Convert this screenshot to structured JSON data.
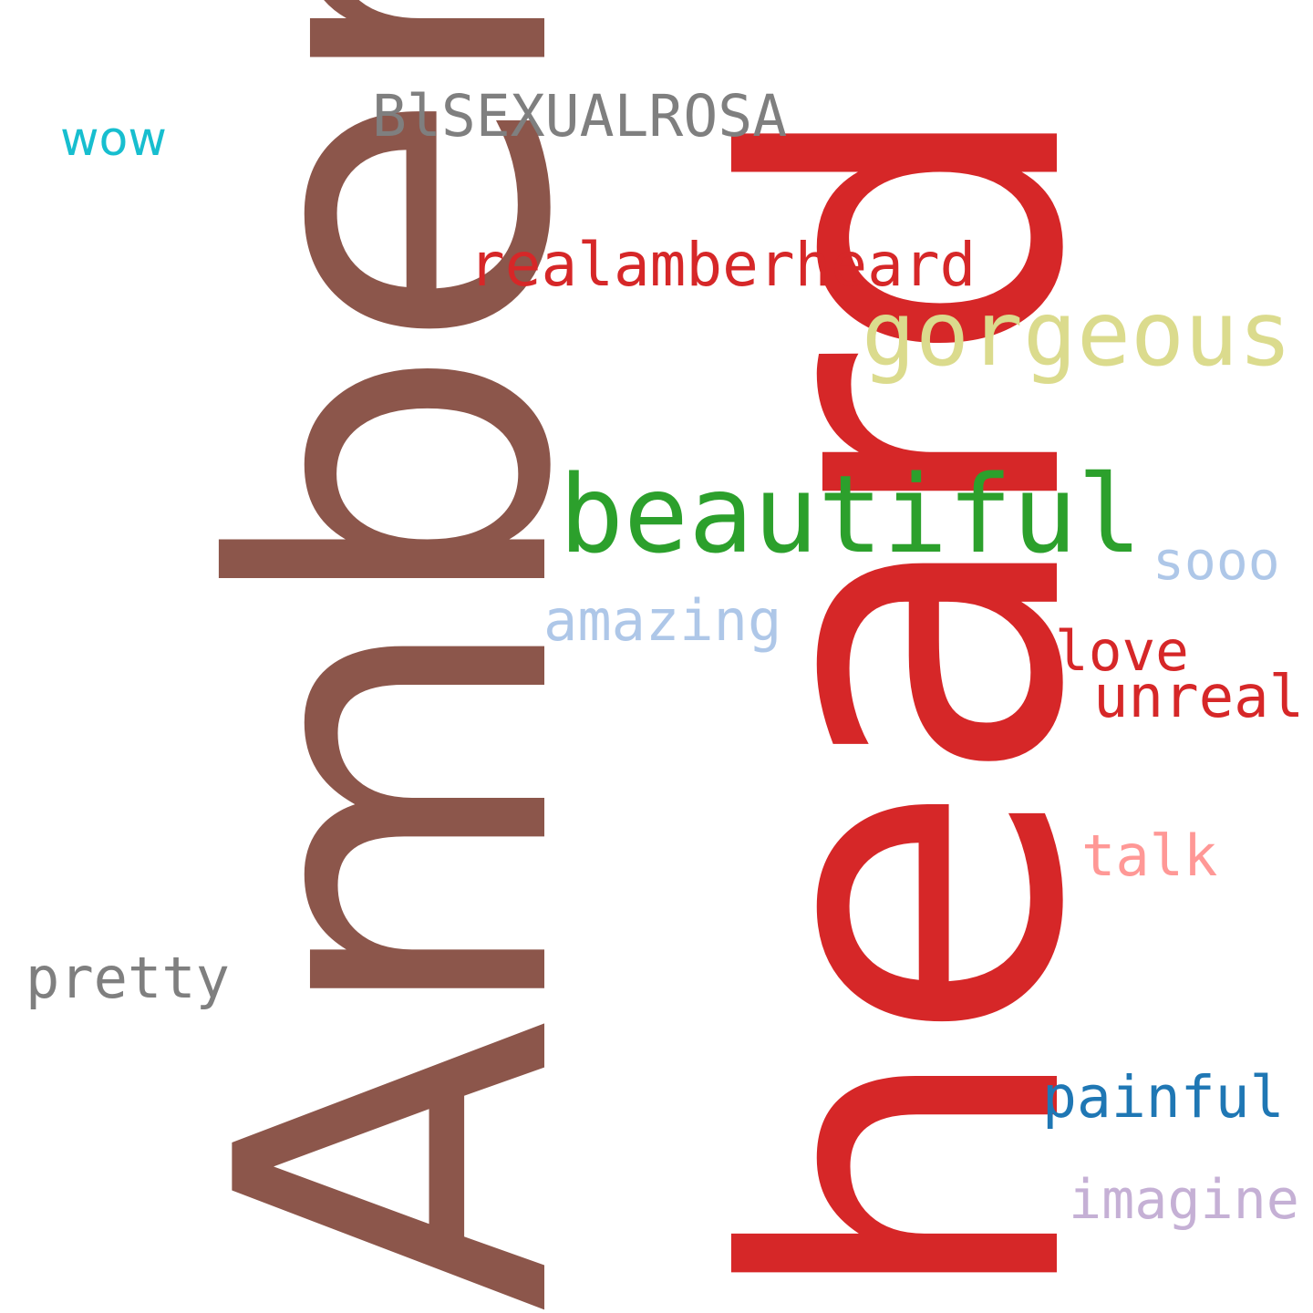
{
  "cloud": {
    "words": {
      "heard": "heard",
      "amber": "Amber",
      "beautiful": "beautiful",
      "gorgeous": "gorgeous",
      "realamberheard": "realamberheard",
      "bisexualrosa": "BlSEXUALROSA",
      "wow": "wow",
      "sooo": "sooo",
      "amazing": "amazing",
      "love": "love",
      "unreal": "unreal",
      "talk": "talk",
      "pretty": "pretty",
      "painful": "painful",
      "imagine": "imagine"
    },
    "colors": {
      "red": "#d62728",
      "brown": "#8c564b",
      "green": "#2ca02c",
      "olive": "#dbdb8d",
      "gray": "#7f7f7f",
      "cyan": "#17becf",
      "lightblue": "#aec7e8",
      "pink": "#ff9896",
      "blue": "#1f77b4",
      "lavender": "#c5b0d5"
    }
  }
}
